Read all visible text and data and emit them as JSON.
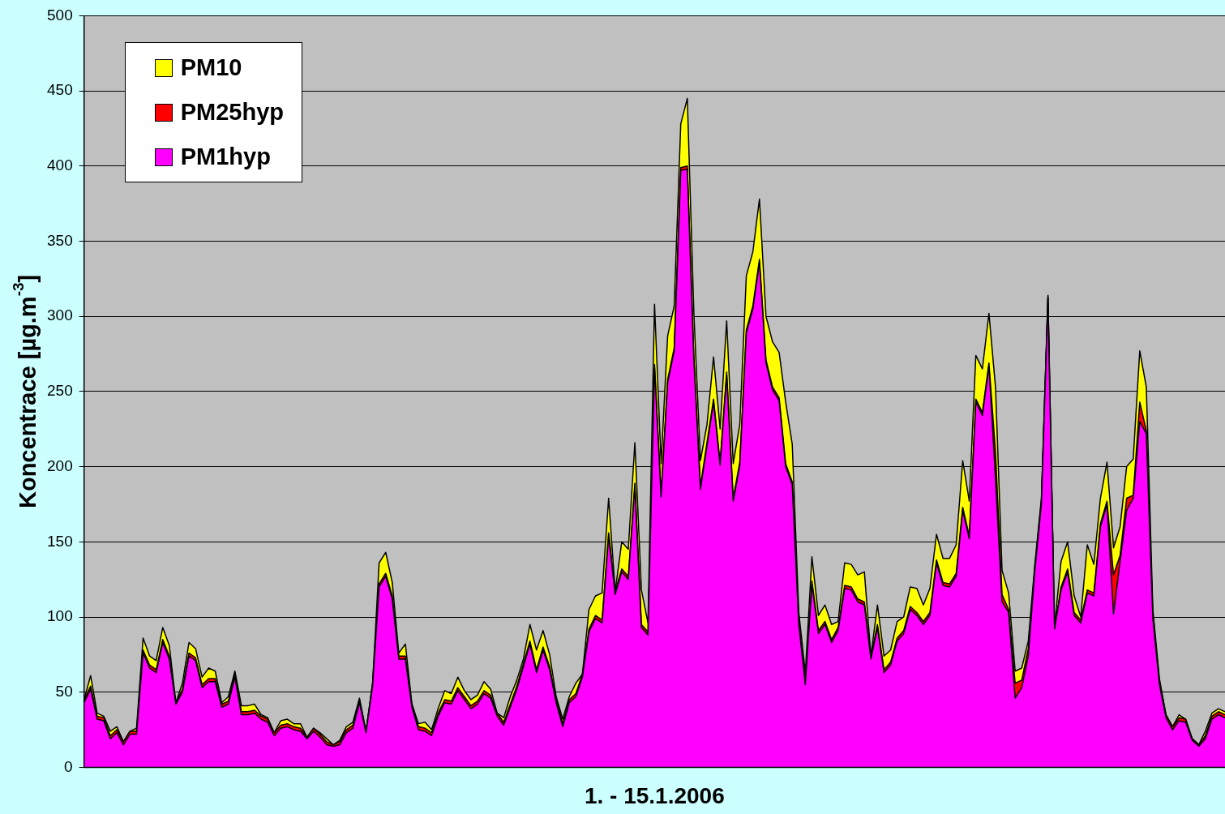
{
  "chart_data": {
    "type": "area",
    "xlabel": "1. - 15.1.2006",
    "ylabel": "Koncentrace [µg.m$^{-3}$]",
    "categories": [
      null,
      null,
      null,
      null,
      null,
      null,
      null,
      null,
      null,
      null,
      null,
      null,
      null,
      null,
      null,
      null,
      null,
      null,
      null,
      null,
      null,
      null,
      null,
      null,
      null,
      null,
      null,
      null,
      null,
      null,
      null,
      null,
      null,
      null,
      null,
      null,
      null,
      null,
      null,
      null,
      null,
      null,
      null,
      null,
      null,
      null,
      null,
      null,
      null,
      null,
      null,
      null,
      null,
      null,
      null,
      null,
      null,
      null,
      null,
      null,
      null,
      null,
      null,
      null,
      null,
      null,
      null,
      null,
      null,
      null,
      null,
      null,
      null,
      null,
      null,
      null,
      null,
      null,
      null,
      null,
      null,
      null,
      null,
      null,
      null,
      null,
      null,
      null,
      null,
      null,
      null,
      null,
      null,
      null,
      null,
      null,
      null,
      null,
      null,
      null,
      null,
      null,
      null,
      null,
      null,
      null,
      null,
      null,
      null,
      null,
      null,
      null,
      null,
      null,
      null,
      null,
      null,
      null,
      null,
      null,
      null,
      null,
      null,
      null,
      null,
      null,
      null,
      null,
      null,
      null,
      null,
      null,
      null,
      null,
      null,
      null,
      null,
      null,
      null,
      null,
      null,
      null,
      null,
      null,
      null,
      null,
      null,
      null,
      null,
      null,
      null,
      null,
      null,
      null,
      null,
      null,
      null,
      null,
      null,
      null,
      null,
      null,
      null,
      null,
      null,
      null,
      null,
      null,
      null,
      null,
      null,
      null,
      null,
      null,
      null
    ],
    "series": [
      {
        "name": "PM10",
        "color": "#ffff00",
        "values": [
          45,
          61,
          36,
          34,
          24,
          27,
          17,
          24,
          26,
          86,
          74,
          71,
          93,
          81,
          43,
          56,
          83,
          79,
          60,
          66,
          64,
          43,
          47,
          64,
          41,
          41,
          42,
          35,
          33,
          23,
          31,
          32,
          29,
          29,
          20,
          26,
          23,
          19,
          15,
          18,
          27,
          30,
          46,
          24,
          56,
          136,
          143,
          123,
          76,
          82,
          42,
          29,
          30,
          25,
          39,
          51,
          49,
          60,
          51,
          45,
          48,
          57,
          52,
          36,
          33,
          47,
          58,
          72,
          95,
          78,
          91,
          75,
          47,
          32,
          47,
          56,
          62,
          105,
          114,
          116,
          179,
          117,
          150,
          145,
          216,
          118,
          96,
          308,
          202,
          287,
          307,
          428,
          445,
          302,
          204,
          228,
          273,
          225,
          297,
          202,
          228,
          327,
          343,
          378,
          300,
          283,
          276,
          243,
          215,
          103,
          63,
          140,
          101,
          108,
          95,
          97,
          136,
          135,
          128,
          130,
          74,
          108,
          74,
          78,
          97,
          100,
          120,
          119,
          108,
          119,
          155,
          139,
          139,
          148,
          204,
          177,
          274,
          265,
          302,
          253,
          131,
          116,
          64,
          66,
          84,
          135,
          179,
          314,
          94,
          137,
          150,
          114,
          100,
          148,
          135,
          179,
          203,
          146,
          160,
          200,
          205,
          277,
          253,
          105,
          59,
          35,
          27,
          35,
          32,
          19,
          15,
          24,
          36,
          39,
          37
        ]
      },
      {
        "name": "PM25hyp",
        "color": "#ff0000",
        "values": [
          45,
          54,
          34,
          33,
          21,
          25,
          17,
          24,
          24,
          78,
          68,
          65,
          85,
          74,
          43,
          52,
          76,
          73,
          55,
          59,
          59,
          42,
          44,
          62,
          37,
          37,
          38,
          34,
          32,
          23,
          28,
          29,
          27,
          26,
          20,
          26,
          22,
          17,
          15,
          17,
          25,
          28,
          45,
          24,
          56,
          122,
          129,
          114,
          74,
          74,
          42,
          27,
          26,
          23,
          36,
          45,
          44,
          53,
          47,
          41,
          44,
          51,
          48,
          36,
          30,
          42,
          54,
          69,
          84,
          65,
          80,
          67,
          45,
          29,
          45,
          49,
          62,
          92,
          101,
          98,
          156,
          117,
          132,
          127,
          189,
          95,
          90,
          268,
          182,
          258,
          279,
          399,
          400,
          273,
          187,
          216,
          245,
          203,
          263,
          179,
          203,
          291,
          307,
          338,
          271,
          253,
          246,
          202,
          190,
          97,
          57,
          124,
          91,
          97,
          85,
          93,
          121,
          120,
          112,
          110,
          74,
          95,
          65,
          70,
          86,
          91,
          107,
          103,
          97,
          103,
          138,
          123,
          122,
          129,
          173,
          154,
          245,
          236,
          269,
          210,
          115,
          105,
          56,
          58,
          79,
          133,
          177,
          313,
          93,
          120,
          132,
          103,
          98,
          118,
          116,
          162,
          177,
          128,
          141,
          179,
          181,
          243,
          224,
          101,
          57,
          35,
          27,
          33,
          32,
          19,
          15,
          21,
          34,
          37,
          35
        ]
      },
      {
        "name": "PM1hyp",
        "color": "#ff00ff",
        "values": [
          43,
          52,
          32,
          31,
          19,
          23,
          15,
          22,
          22,
          76,
          66,
          63,
          83,
          72,
          42,
          50,
          74,
          71,
          53,
          57,
          57,
          40,
          42,
          60,
          35,
          35,
          36,
          32,
          30,
          21,
          26,
          27,
          25,
          24,
          19,
          24,
          20,
          15,
          14,
          15,
          23,
          26,
          43,
          23,
          54,
          120,
          127,
          112,
          72,
          72,
          40,
          25,
          24,
          21,
          34,
          43,
          42,
          51,
          45,
          39,
          42,
          49,
          46,
          34,
          28,
          40,
          52,
          67,
          82,
          63,
          78,
          65,
          43,
          27,
          43,
          47,
          60,
          90,
          99,
          96,
          154,
          115,
          130,
          125,
          187,
          93,
          88,
          266,
          180,
          256,
          277,
          397,
          398,
          271,
          185,
          214,
          243,
          201,
          261,
          177,
          201,
          289,
          305,
          336,
          269,
          251,
          244,
          200,
          188,
          95,
          55,
          122,
          89,
          95,
          83,
          91,
          119,
          118,
          110,
          108,
          72,
          93,
          63,
          68,
          84,
          89,
          105,
          101,
          95,
          101,
          136,
          121,
          120,
          127,
          171,
          152,
          243,
          234,
          267,
          192,
          110,
          103,
          46,
          53,
          74,
          131,
          175,
          312,
          92,
          118,
          130,
          101,
          96,
          116,
          114,
          160,
          175,
          102,
          137,
          171,
          179,
          230,
          222,
          99,
          55,
          33,
          25,
          31,
          30,
          18,
          14,
          19,
          32,
          35,
          33
        ]
      }
    ],
    "ylim": [
      0,
      500
    ],
    "yticks": [
      0,
      50,
      100,
      150,
      200,
      250,
      300,
      350,
      400,
      450,
      500
    ],
    "grid": "y",
    "legend": "top left",
    "marker": "none",
    "tick_labels": "y"
  }
}
